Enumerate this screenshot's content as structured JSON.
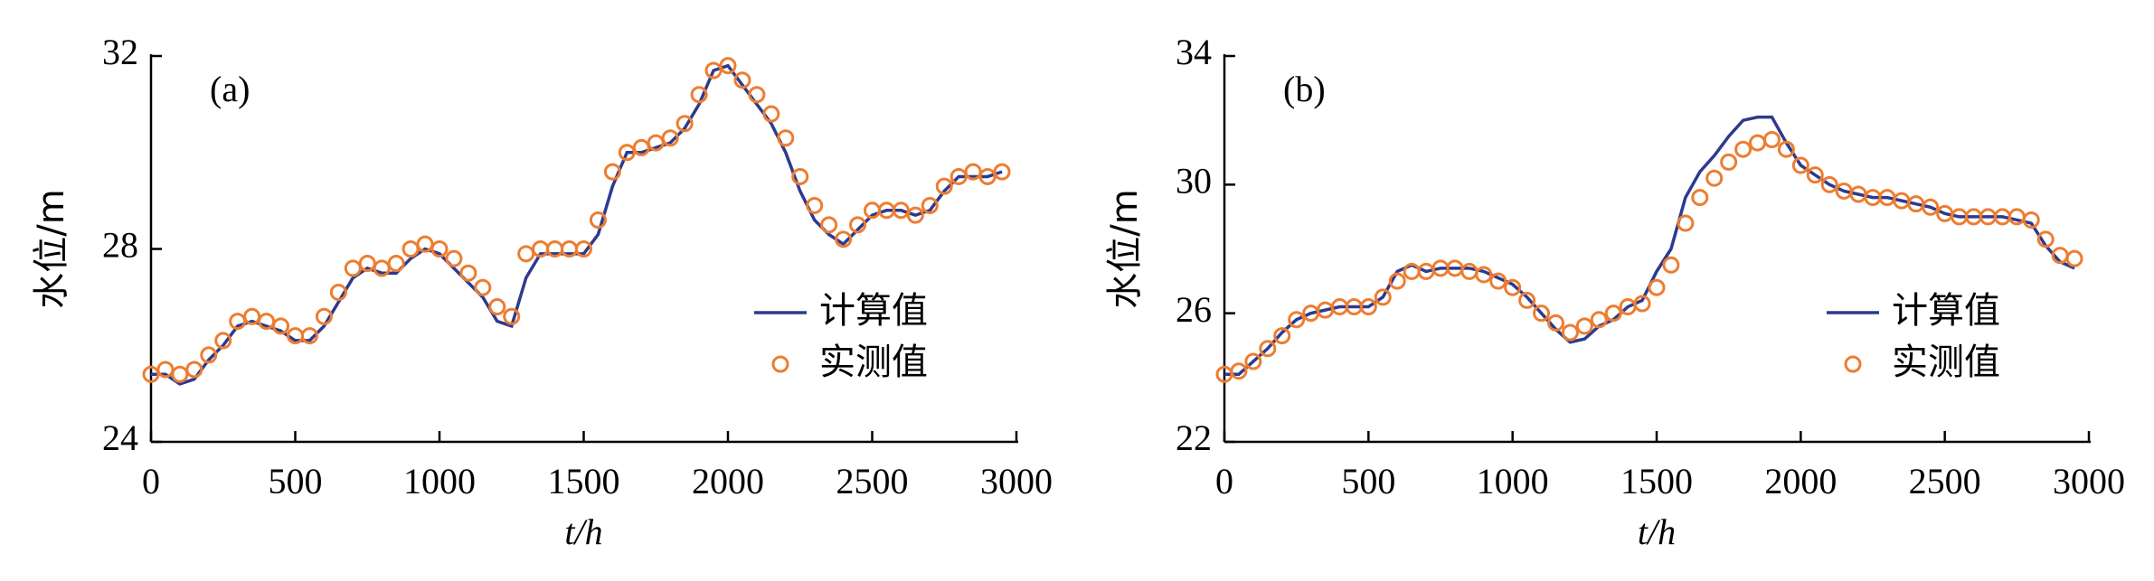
{
  "chart_data": [
    {
      "type": "line",
      "annotation": "(a)",
      "xlabel": "t/h",
      "ylabel": "水位/m",
      "xlim": [
        0,
        3000
      ],
      "xticks": [
        0,
        500,
        1000,
        1500,
        2000,
        2500,
        3000
      ],
      "ylim": [
        24,
        32
      ],
      "yticks": [
        24,
        28,
        32
      ],
      "legend": "lower right",
      "x": [
        0,
        50,
        100,
        150,
        200,
        250,
        300,
        350,
        400,
        450,
        500,
        550,
        600,
        650,
        700,
        750,
        800,
        850,
        900,
        950,
        1000,
        1050,
        1100,
        1150,
        1200,
        1250,
        1300,
        1350,
        1400,
        1450,
        1500,
        1550,
        1600,
        1650,
        1700,
        1750,
        1800,
        1850,
        1900,
        1950,
        2000,
        2050,
        2100,
        2150,
        2200,
        2250,
        2300,
        2350,
        2400,
        2450,
        2500,
        2550,
        2600,
        2650,
        2700,
        2750,
        2800,
        2850,
        2900,
        2950
      ],
      "series": [
        {
          "name": "计算值",
          "kind": "line",
          "color": "#2e3a8c",
          "values": [
            25.4,
            25.4,
            25.2,
            25.3,
            25.7,
            26.0,
            26.4,
            26.5,
            26.4,
            26.3,
            26.1,
            26.1,
            26.4,
            26.9,
            27.4,
            27.6,
            27.5,
            27.5,
            27.8,
            28.0,
            27.9,
            27.6,
            27.3,
            27.0,
            26.5,
            26.4,
            27.4,
            27.9,
            27.9,
            27.9,
            27.9,
            28.3,
            29.3,
            30.0,
            30.0,
            30.1,
            30.2,
            30.5,
            31.0,
            31.7,
            31.8,
            31.4,
            31.0,
            30.6,
            30.0,
            29.2,
            28.6,
            28.3,
            28.1,
            28.4,
            28.7,
            28.8,
            28.8,
            28.7,
            28.8,
            29.2,
            29.5,
            29.5,
            29.5,
            29.6
          ]
        },
        {
          "name": "实测值",
          "kind": "scatter",
          "color": "#ed7d31",
          "values": [
            25.4,
            25.5,
            25.4,
            25.5,
            25.8,
            26.1,
            26.5,
            26.6,
            26.5,
            26.4,
            26.2,
            26.2,
            26.6,
            27.1,
            27.6,
            27.7,
            27.6,
            27.7,
            28.0,
            28.1,
            28.0,
            27.8,
            27.5,
            27.2,
            26.8,
            26.6,
            27.9,
            28.0,
            28.0,
            28.0,
            28.0,
            28.6,
            29.6,
            30.0,
            30.1,
            30.2,
            30.3,
            30.6,
            31.2,
            31.7,
            31.8,
            31.5,
            31.2,
            30.8,
            30.3,
            29.5,
            28.9,
            28.5,
            28.2,
            28.5,
            28.8,
            28.8,
            28.8,
            28.7,
            28.9,
            29.3,
            29.5,
            29.6,
            29.5,
            29.6
          ]
        }
      ]
    },
    {
      "type": "line",
      "annotation": "(b)",
      "xlabel": "t/h",
      "ylabel": "水位/m",
      "xlim": [
        0,
        3000
      ],
      "xticks": [
        0,
        500,
        1000,
        1500,
        2000,
        2500,
        3000
      ],
      "ylim": [
        22,
        34
      ],
      "yticks": [
        22,
        26,
        30,
        34
      ],
      "legend": "lower right",
      "x": [
        0,
        50,
        100,
        150,
        200,
        250,
        300,
        350,
        400,
        450,
        500,
        550,
        600,
        650,
        700,
        750,
        800,
        850,
        900,
        950,
        1000,
        1050,
        1100,
        1150,
        1200,
        1250,
        1300,
        1350,
        1400,
        1450,
        1500,
        1550,
        1600,
        1650,
        1700,
        1750,
        1800,
        1850,
        1900,
        1950,
        2000,
        2050,
        2100,
        2150,
        2200,
        2250,
        2300,
        2350,
        2400,
        2450,
        2500,
        2550,
        2600,
        2650,
        2700,
        2750,
        2800,
        2850,
        2900,
        2950
      ],
      "series": [
        {
          "name": "计算值",
          "kind": "line",
          "color": "#2e3a8c",
          "values": [
            24.1,
            24.1,
            24.5,
            24.9,
            25.4,
            25.8,
            26.0,
            26.1,
            26.2,
            26.2,
            26.2,
            26.5,
            27.3,
            27.5,
            27.3,
            27.4,
            27.4,
            27.4,
            27.3,
            27.1,
            26.9,
            26.5,
            26.0,
            25.5,
            25.1,
            25.2,
            25.6,
            25.8,
            26.2,
            26.4,
            27.3,
            28.0,
            29.6,
            30.4,
            30.9,
            31.5,
            32.0,
            32.1,
            32.1,
            31.3,
            30.6,
            30.3,
            30.0,
            29.8,
            29.7,
            29.6,
            29.6,
            29.5,
            29.4,
            29.3,
            29.1,
            29.0,
            29.0,
            29.0,
            29.0,
            28.9,
            28.8,
            28.1,
            27.6,
            27.4
          ]
        },
        {
          "name": "实测值",
          "kind": "scatter",
          "color": "#ed7d31",
          "values": [
            24.1,
            24.2,
            24.5,
            24.9,
            25.3,
            25.8,
            26.0,
            26.1,
            26.2,
            26.2,
            26.2,
            26.5,
            27.0,
            27.3,
            27.3,
            27.4,
            27.4,
            27.3,
            27.2,
            27.0,
            26.8,
            26.4,
            26.0,
            25.7,
            25.4,
            25.6,
            25.8,
            26.0,
            26.2,
            26.3,
            26.8,
            27.5,
            28.8,
            29.6,
            30.2,
            30.7,
            31.1,
            31.3,
            31.4,
            31.1,
            30.6,
            30.3,
            30.0,
            29.8,
            29.7,
            29.6,
            29.6,
            29.5,
            29.4,
            29.3,
            29.1,
            29.0,
            29.0,
            29.0,
            29.0,
            29.0,
            28.9,
            28.3,
            27.8,
            27.7
          ]
        }
      ]
    }
  ]
}
